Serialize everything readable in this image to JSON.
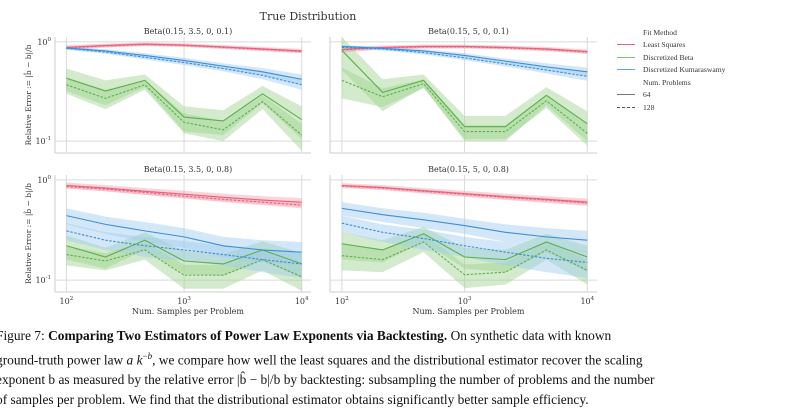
{
  "figure": {
    "suptitle": "True Distribution",
    "ylabel": "Relative Error := |b̂ − b|/b",
    "xlabel": "Num. Samples per Problem"
  },
  "legend": {
    "title": "Fit Method",
    "methods": [
      {
        "label": "Least Squares",
        "color": "#e8617a"
      },
      {
        "label": "Discretized Beta",
        "color": "#5cb04a"
      },
      {
        "label": "Discretized Kumaraswamy",
        "color": "#3a8fd8"
      }
    ],
    "style_title": "Num. Problems",
    "styles": [
      {
        "label": "64",
        "dash": "solid"
      },
      {
        "label": "128",
        "dash": "dashed"
      }
    ]
  },
  "caption": {
    "figure_label": "Figure 7:",
    "bold_title": "Comparing Two Estimators of Power Law Exponents via Backtesting.",
    "line1_rest": "On synthetic data with known",
    "line2": "ground-truth power law a k^−b, we compare how well the least squares and the distributional estimator recover the scaling",
    "line3": "exponent b as measured by the relative error |b̂ − b|/b by backtesting: subsampling the number of problems and the number",
    "line4": "of samples per problem. We find that the distributional estimator obtains significantly better sample efficiency."
  },
  "chart_data": [
    {
      "type": "line",
      "title": "Beta(0.15, 3.5, 0, 0.1)",
      "xlabel": "",
      "ylabel": "Relative Error := |b̂ − b|/b",
      "xscale": "log",
      "yscale": "log",
      "xlim": [
        80,
        12000
      ],
      "ylim": [
        0.076,
        1.12
      ],
      "xticks": [
        "10^2",
        "10^3",
        "10^4"
      ],
      "yticks": [
        "10^0",
        "10^-1"
      ],
      "grid": true,
      "x": [
        100,
        215,
        464,
        1000,
        2154,
        4642,
        10000
      ],
      "series": [
        {
          "name": "Least Squares / 64",
          "style": "solid",
          "values": [
            0.88,
            0.92,
            0.95,
            0.93,
            0.89,
            0.85,
            0.81
          ],
          "band": [
            0.05,
            0.04,
            0.04,
            0.04,
            0.04,
            0.04,
            0.04
          ]
        },
        {
          "name": "Least Squares / 128",
          "style": "dashed",
          "values": [
            0.87,
            0.91,
            0.94,
            0.92,
            0.88,
            0.84,
            0.8
          ],
          "band": [
            0.03,
            0.03,
            0.03,
            0.03,
            0.03,
            0.03,
            0.03
          ]
        },
        {
          "name": "Discretized Beta / 64",
          "style": "solid",
          "values": [
            0.43,
            0.32,
            0.41,
            0.175,
            0.16,
            0.3,
            0.165
          ],
          "band": [
            0.11,
            0.09,
            0.06,
            0.05,
            0.045,
            0.06,
            0.06
          ]
        },
        {
          "name": "Discretized Beta / 128",
          "style": "dashed",
          "values": [
            0.37,
            0.27,
            0.37,
            0.155,
            0.13,
            0.25,
            0.115
          ],
          "band": [
            0.07,
            0.06,
            0.04,
            0.035,
            0.03,
            0.04,
            0.035
          ]
        },
        {
          "name": "Discretized Kumaraswamy / 64",
          "style": "solid",
          "values": [
            0.87,
            0.81,
            0.73,
            0.65,
            0.57,
            0.5,
            0.42
          ],
          "band": [
            0.03,
            0.035,
            0.04,
            0.04,
            0.04,
            0.045,
            0.05
          ]
        },
        {
          "name": "Discretized Kumaraswamy / 128",
          "style": "dashed",
          "values": [
            0.86,
            0.79,
            0.7,
            0.62,
            0.54,
            0.46,
            0.37
          ],
          "band": [
            0.03,
            0.03,
            0.035,
            0.035,
            0.035,
            0.04,
            0.04
          ]
        }
      ]
    },
    {
      "type": "line",
      "title": "Beta(0.15, 5, 0, 0.1)",
      "xscale": "log",
      "yscale": "log",
      "xlim": [
        80,
        12000
      ],
      "ylim": [
        0.076,
        1.12
      ],
      "xticks": [
        "10^2",
        "10^3",
        "10^4"
      ],
      "yticks": [
        "10^0",
        "10^-1"
      ],
      "grid": true,
      "x": [
        100,
        215,
        464,
        1000,
        2154,
        4642,
        10000
      ],
      "series": [
        {
          "name": "Least Squares / 64",
          "style": "solid",
          "values": [
            0.84,
            0.88,
            0.9,
            0.9,
            0.88,
            0.85,
            0.8
          ],
          "band": [
            0.06,
            0.04,
            0.04,
            0.04,
            0.04,
            0.04,
            0.04
          ]
        },
        {
          "name": "Least Squares / 128",
          "style": "dashed",
          "values": [
            0.83,
            0.87,
            0.89,
            0.89,
            0.87,
            0.84,
            0.79
          ],
          "band": [
            0.03,
            0.03,
            0.03,
            0.03,
            0.03,
            0.03,
            0.03
          ]
        },
        {
          "name": "Discretized Beta / 64",
          "style": "solid",
          "values": [
            0.82,
            0.31,
            0.41,
            0.14,
            0.14,
            0.29,
            0.15
          ],
          "band": [
            0.3,
            0.11,
            0.06,
            0.04,
            0.04,
            0.06,
            0.05
          ]
        },
        {
          "name": "Discretized Beta / 128",
          "style": "dashed",
          "values": [
            0.41,
            0.28,
            0.38,
            0.125,
            0.125,
            0.255,
            0.12
          ],
          "band": [
            0.14,
            0.06,
            0.04,
            0.02,
            0.02,
            0.04,
            0.03
          ]
        },
        {
          "name": "Discretized Kumaraswamy / 64",
          "style": "solid",
          "values": [
            0.9,
            0.86,
            0.81,
            0.73,
            0.64,
            0.56,
            0.5
          ],
          "band": [
            0.03,
            0.03,
            0.035,
            0.04,
            0.04,
            0.05,
            0.05
          ]
        },
        {
          "name": "Discretized Kumaraswamy / 128",
          "style": "dashed",
          "values": [
            0.88,
            0.85,
            0.78,
            0.69,
            0.6,
            0.52,
            0.45
          ],
          "band": [
            0.03,
            0.03,
            0.035,
            0.035,
            0.035,
            0.04,
            0.045
          ]
        }
      ]
    },
    {
      "type": "line",
      "title": "Beta(0.15, 3.5, 0, 0.8)",
      "xlabel": "Num. Samples per Problem",
      "ylabel": "Relative Error := |b̂ − b|/b",
      "xscale": "log",
      "yscale": "log",
      "xlim": [
        80,
        12000
      ],
      "ylim": [
        0.076,
        1.12
      ],
      "xticks": [
        "10^2",
        "10^3",
        "10^4"
      ],
      "yticks": [
        "10^0",
        "10^-1"
      ],
      "grid": true,
      "x": [
        100,
        215,
        464,
        1000,
        2154,
        4642,
        10000
      ],
      "series": [
        {
          "name": "Least Squares / 64",
          "style": "solid",
          "values": [
            0.88,
            0.83,
            0.77,
            0.72,
            0.67,
            0.63,
            0.6
          ],
          "band": [
            0.06,
            0.06,
            0.06,
            0.06,
            0.06,
            0.06,
            0.06
          ]
        },
        {
          "name": "Least Squares / 128",
          "style": "dashed",
          "values": [
            0.86,
            0.81,
            0.75,
            0.69,
            0.64,
            0.6,
            0.56
          ],
          "band": [
            0.04,
            0.04,
            0.04,
            0.04,
            0.04,
            0.04,
            0.04
          ]
        },
        {
          "name": "Discretized Beta / 64",
          "style": "solid",
          "values": [
            0.22,
            0.17,
            0.25,
            0.155,
            0.145,
            0.2,
            0.145
          ],
          "band": [
            0.06,
            0.04,
            0.05,
            0.04,
            0.035,
            0.045,
            0.04
          ]
        },
        {
          "name": "Discretized Beta / 128",
          "style": "dashed",
          "values": [
            0.18,
            0.155,
            0.2,
            0.112,
            0.112,
            0.16,
            0.108
          ],
          "band": [
            0.04,
            0.03,
            0.04,
            0.03,
            0.03,
            0.035,
            0.03
          ]
        },
        {
          "name": "Discretized Kumaraswamy / 64",
          "style": "solid",
          "values": [
            0.44,
            0.36,
            0.31,
            0.27,
            0.22,
            0.2,
            0.19
          ],
          "band": [
            0.08,
            0.07,
            0.07,
            0.06,
            0.05,
            0.05,
            0.05
          ]
        },
        {
          "name": "Discretized Kumaraswamy / 128",
          "style": "dashed",
          "values": [
            0.31,
            0.25,
            0.22,
            0.2,
            0.18,
            0.16,
            0.145
          ],
          "band": [
            0.06,
            0.05,
            0.05,
            0.045,
            0.04,
            0.04,
            0.04
          ]
        }
      ]
    },
    {
      "type": "line",
      "title": "Beta(0.15, 5, 0, 0.8)",
      "xlabel": "Num. Samples per Problem",
      "xscale": "log",
      "yscale": "log",
      "xlim": [
        80,
        12000
      ],
      "ylim": [
        0.076,
        1.12
      ],
      "xticks": [
        "10^2",
        "10^3",
        "10^4"
      ],
      "yticks": [
        "10^0",
        "10^-1"
      ],
      "grid": true,
      "x": [
        100,
        215,
        464,
        1000,
        2154,
        4642,
        10000
      ],
      "series": [
        {
          "name": "Least Squares / 64",
          "style": "solid",
          "values": [
            0.88,
            0.84,
            0.78,
            0.73,
            0.68,
            0.64,
            0.6
          ],
          "band": [
            0.05,
            0.05,
            0.05,
            0.05,
            0.05,
            0.05,
            0.05
          ]
        },
        {
          "name": "Least Squares / 128",
          "style": "dashed",
          "values": [
            0.87,
            0.83,
            0.77,
            0.72,
            0.67,
            0.63,
            0.59
          ],
          "band": [
            0.03,
            0.03,
            0.03,
            0.03,
            0.03,
            0.03,
            0.03
          ]
        },
        {
          "name": "Discretized Beta / 64",
          "style": "solid",
          "values": [
            0.23,
            0.2,
            0.29,
            0.17,
            0.16,
            0.24,
            0.17
          ],
          "band": [
            0.07,
            0.05,
            0.05,
            0.04,
            0.04,
            0.05,
            0.05
          ]
        },
        {
          "name": "Discretized Beta / 128",
          "style": "dashed",
          "values": [
            0.175,
            0.16,
            0.24,
            0.113,
            0.12,
            0.2,
            0.125
          ],
          "band": [
            0.05,
            0.04,
            0.05,
            0.03,
            0.03,
            0.04,
            0.035
          ]
        },
        {
          "name": "Discretized Kumaraswamy / 64",
          "style": "solid",
          "values": [
            0.52,
            0.45,
            0.4,
            0.35,
            0.3,
            0.27,
            0.25
          ],
          "band": [
            0.08,
            0.07,
            0.07,
            0.06,
            0.06,
            0.06,
            0.06
          ]
        },
        {
          "name": "Discretized Kumaraswamy / 128",
          "style": "dashed",
          "values": [
            0.37,
            0.3,
            0.26,
            0.22,
            0.19,
            0.165,
            0.15
          ],
          "band": [
            0.07,
            0.06,
            0.06,
            0.05,
            0.05,
            0.045,
            0.045
          ]
        }
      ]
    }
  ]
}
